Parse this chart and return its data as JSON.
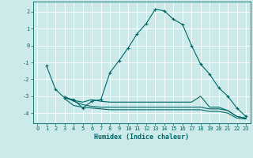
{
  "title": "",
  "xlabel": "Humidex (Indice chaleur)",
  "background_color": "#cceaea",
  "grid_color": "#ffffff",
  "line_color": "#006666",
  "xlim": [
    -0.5,
    23.5
  ],
  "ylim": [
    -4.6,
    2.6
  ],
  "xticks": [
    0,
    1,
    2,
    3,
    4,
    5,
    6,
    7,
    8,
    9,
    10,
    11,
    12,
    13,
    14,
    15,
    16,
    17,
    18,
    19,
    20,
    21,
    22,
    23
  ],
  "yticks": [
    -4,
    -3,
    -2,
    -1,
    0,
    1,
    2
  ],
  "series1_x": [
    1,
    2,
    3,
    4,
    5,
    6,
    7,
    8,
    9,
    10,
    11,
    12,
    13,
    14,
    15,
    16,
    17,
    18,
    19,
    20,
    21,
    22,
    23
  ],
  "series1_y": [
    -1.2,
    -2.6,
    -3.1,
    -3.2,
    -3.7,
    -3.3,
    -3.2,
    -1.6,
    -0.9,
    -0.15,
    0.7,
    1.3,
    2.15,
    2.05,
    1.55,
    1.25,
    0.0,
    -1.1,
    -1.7,
    -2.5,
    -3.0,
    -3.7,
    -4.2
  ],
  "series2_x": [
    3,
    4,
    5,
    6,
    7,
    8,
    9,
    10,
    11,
    12,
    13,
    14,
    15,
    16,
    17,
    18,
    19,
    20,
    21,
    22,
    23
  ],
  "series2_y": [
    -3.1,
    -3.25,
    -3.35,
    -3.2,
    -3.3,
    -3.35,
    -3.35,
    -3.35,
    -3.35,
    -3.35,
    -3.35,
    -3.35,
    -3.35,
    -3.35,
    -3.35,
    -3.0,
    -3.65,
    -3.65,
    -3.85,
    -4.2,
    -4.3
  ],
  "series3_x": [
    3,
    4,
    5,
    6,
    7,
    8,
    9,
    10,
    11,
    12,
    13,
    14,
    15,
    16,
    17,
    18,
    19,
    20,
    21,
    22,
    23
  ],
  "series3_y": [
    -3.15,
    -3.55,
    -3.65,
    -3.7,
    -3.75,
    -3.8,
    -3.8,
    -3.8,
    -3.8,
    -3.8,
    -3.8,
    -3.8,
    -3.8,
    -3.8,
    -3.8,
    -3.8,
    -3.9,
    -3.9,
    -4.0,
    -4.3,
    -4.35
  ],
  "series4_x": [
    3,
    4,
    5,
    6,
    7,
    8,
    9,
    10,
    11,
    12,
    13,
    14,
    15,
    16,
    17,
    18,
    19,
    20,
    21,
    22,
    23
  ],
  "series4_y": [
    -3.0,
    -3.3,
    -3.5,
    -3.6,
    -3.65,
    -3.65,
    -3.65,
    -3.65,
    -3.65,
    -3.65,
    -3.65,
    -3.65,
    -3.65,
    -3.65,
    -3.65,
    -3.65,
    -3.75,
    -3.75,
    -3.85,
    -4.2,
    -4.3
  ],
  "tick_fontsize": 5.0,
  "xlabel_fontsize": 6.0,
  "lw": 0.8,
  "marker_size": 3.0
}
